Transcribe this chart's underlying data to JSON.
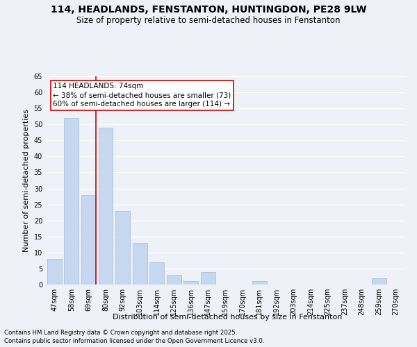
{
  "title1": "114, HEADLANDS, FENSTANTON, HUNTINGDON, PE28 9LW",
  "title2": "Size of property relative to semi-detached houses in Fenstanton",
  "xlabel": "Distribution of semi-detached houses by size in Fenstanton",
  "ylabel": "Number of semi-detached properties",
  "categories": [
    "47sqm",
    "58sqm",
    "69sqm",
    "80sqm",
    "92sqm",
    "103sqm",
    "114sqm",
    "125sqm",
    "136sqm",
    "147sqm",
    "159sqm",
    "170sqm",
    "181sqm",
    "192sqm",
    "203sqm",
    "214sqm",
    "225sqm",
    "237sqm",
    "248sqm",
    "259sqm",
    "270sqm"
  ],
  "values": [
    8,
    52,
    28,
    49,
    23,
    13,
    7,
    3,
    1,
    4,
    0,
    0,
    1,
    0,
    0,
    0,
    0,
    0,
    0,
    2,
    0
  ],
  "bar_color": "#c5d8f0",
  "bar_edge_color": "#a0b8d8",
  "marker_index": 2,
  "marker_label": "114 HEADLANDS: 74sqm",
  "marker_line_color": "#cc0000",
  "annotation_line1": "← 38% of semi-detached houses are smaller (73)",
  "annotation_line2": "60% of semi-detached houses are larger (114) →",
  "annotation_box_color": "#cc0000",
  "ylim": [
    0,
    65
  ],
  "yticks": [
    0,
    5,
    10,
    15,
    20,
    25,
    30,
    35,
    40,
    45,
    50,
    55,
    60,
    65
  ],
  "footnote1": "Contains HM Land Registry data © Crown copyright and database right 2025.",
  "footnote2": "Contains public sector information licensed under the Open Government Licence v3.0.",
  "background_color": "#eef2f8",
  "grid_color": "#ffffff",
  "title_fontsize": 10,
  "subtitle_fontsize": 8.5,
  "axis_label_fontsize": 8,
  "tick_fontsize": 7,
  "footnote_fontsize": 6.2,
  "annotation_fontsize": 7.5
}
